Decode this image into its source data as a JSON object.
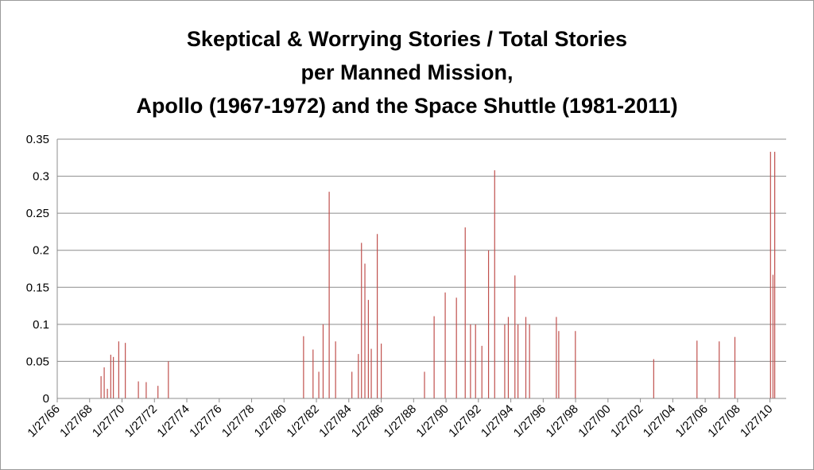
{
  "chart_data": {
    "type": "bar",
    "title_lines": [
      "Skeptical & Worrying Stories / Total Stories",
      "per Manned Mission,",
      "Apollo (1967-1972) and the Space Shuttle (1981-2011)"
    ],
    "ylim": [
      0,
      0.35
    ],
    "y_ticks": [
      "0",
      "0.05",
      "0.1",
      "0.15",
      "0.2",
      "0.25",
      "0.3",
      "0.35"
    ],
    "x_ticks": [
      "1/27/66",
      "1/27/68",
      "1/27/70",
      "1/27/72",
      "1/27/74",
      "1/27/76",
      "1/27/78",
      "1/27/80",
      "1/27/82",
      "1/27/84",
      "1/27/86",
      "1/27/88",
      "1/27/90",
      "1/27/92",
      "1/27/94",
      "1/27/96",
      "1/27/98",
      "1/27/00",
      "1/27/02",
      "1/27/04",
      "1/27/06",
      "1/27/08",
      "1/27/10"
    ],
    "xlim": [
      "1966-01-27",
      "2011-01-27"
    ],
    "grid": true,
    "bar_color": "#c0504d",
    "points": [
      {
        "date": "1968-10-11",
        "value": 0.03
      },
      {
        "date": "1968-12-21",
        "value": 0.042
      },
      {
        "date": "1969-03-03",
        "value": 0.013
      },
      {
        "date": "1969-05-18",
        "value": 0.059
      },
      {
        "date": "1969-07-16",
        "value": 0.056
      },
      {
        "date": "1969-11-14",
        "value": 0.077
      },
      {
        "date": "1970-04-11",
        "value": 0.075
      },
      {
        "date": "1971-01-31",
        "value": 0.023
      },
      {
        "date": "1971-07-26",
        "value": 0.022
      },
      {
        "date": "1972-04-16",
        "value": 0.017
      },
      {
        "date": "1972-12-07",
        "value": 0.05
      },
      {
        "date": "1981-04-12",
        "value": 0.084
      },
      {
        "date": "1981-11-12",
        "value": 0.066
      },
      {
        "date": "1982-03-22",
        "value": 0.036
      },
      {
        "date": "1982-06-27",
        "value": 0.1
      },
      {
        "date": "1982-11-11",
        "value": 0.279
      },
      {
        "date": "1983-04-04",
        "value": 0.077
      },
      {
        "date": "1984-04-06",
        "value": 0.036
      },
      {
        "date": "1984-08-30",
        "value": 0.06
      },
      {
        "date": "1984-11-08",
        "value": 0.21
      },
      {
        "date": "1985-01-24",
        "value": 0.182
      },
      {
        "date": "1985-04-12",
        "value": 0.133
      },
      {
        "date": "1985-06-17",
        "value": 0.067
      },
      {
        "date": "1985-10-30",
        "value": 0.222
      },
      {
        "date": "1986-01-28",
        "value": 0.074
      },
      {
        "date": "1988-09-29",
        "value": 0.036
      },
      {
        "date": "1989-05-04",
        "value": 0.111
      },
      {
        "date": "1990-01-09",
        "value": 0.143
      },
      {
        "date": "1990-09-19",
        "value": 0.136
      },
      {
        "date": "1991-04-05",
        "value": 0.231
      },
      {
        "date": "1991-08-02",
        "value": 0.1
      },
      {
        "date": "1991-11-24",
        "value": 0.1
      },
      {
        "date": "1992-04-15",
        "value": 0.071
      },
      {
        "date": "1992-09-12",
        "value": 0.2
      },
      {
        "date": "1993-01-28",
        "value": 0.308
      },
      {
        "date": "1993-09-12",
        "value": 0.1
      },
      {
        "date": "1993-12-02",
        "value": 0.11
      },
      {
        "date": "1994-04-30",
        "value": 0.166
      },
      {
        "date": "1994-07-08",
        "value": 0.1
      },
      {
        "date": "1995-01-01",
        "value": 0.11
      },
      {
        "date": "1995-03-25",
        "value": 0.1
      },
      {
        "date": "1996-11-19",
        "value": 0.11
      },
      {
        "date": "1997-01-12",
        "value": 0.091
      },
      {
        "date": "1998-01-22",
        "value": 0.091
      },
      {
        "date": "2002-11-23",
        "value": 0.053
      },
      {
        "date": "2005-07-26",
        "value": 0.078
      },
      {
        "date": "2006-12-09",
        "value": 0.077
      },
      {
        "date": "2007-11-28",
        "value": 0.083
      },
      {
        "date": "2010-02-08",
        "value": 0.333
      },
      {
        "date": "2010-04-05",
        "value": 0.167
      },
      {
        "date": "2010-05-14",
        "value": 0.333
      }
    ]
  }
}
